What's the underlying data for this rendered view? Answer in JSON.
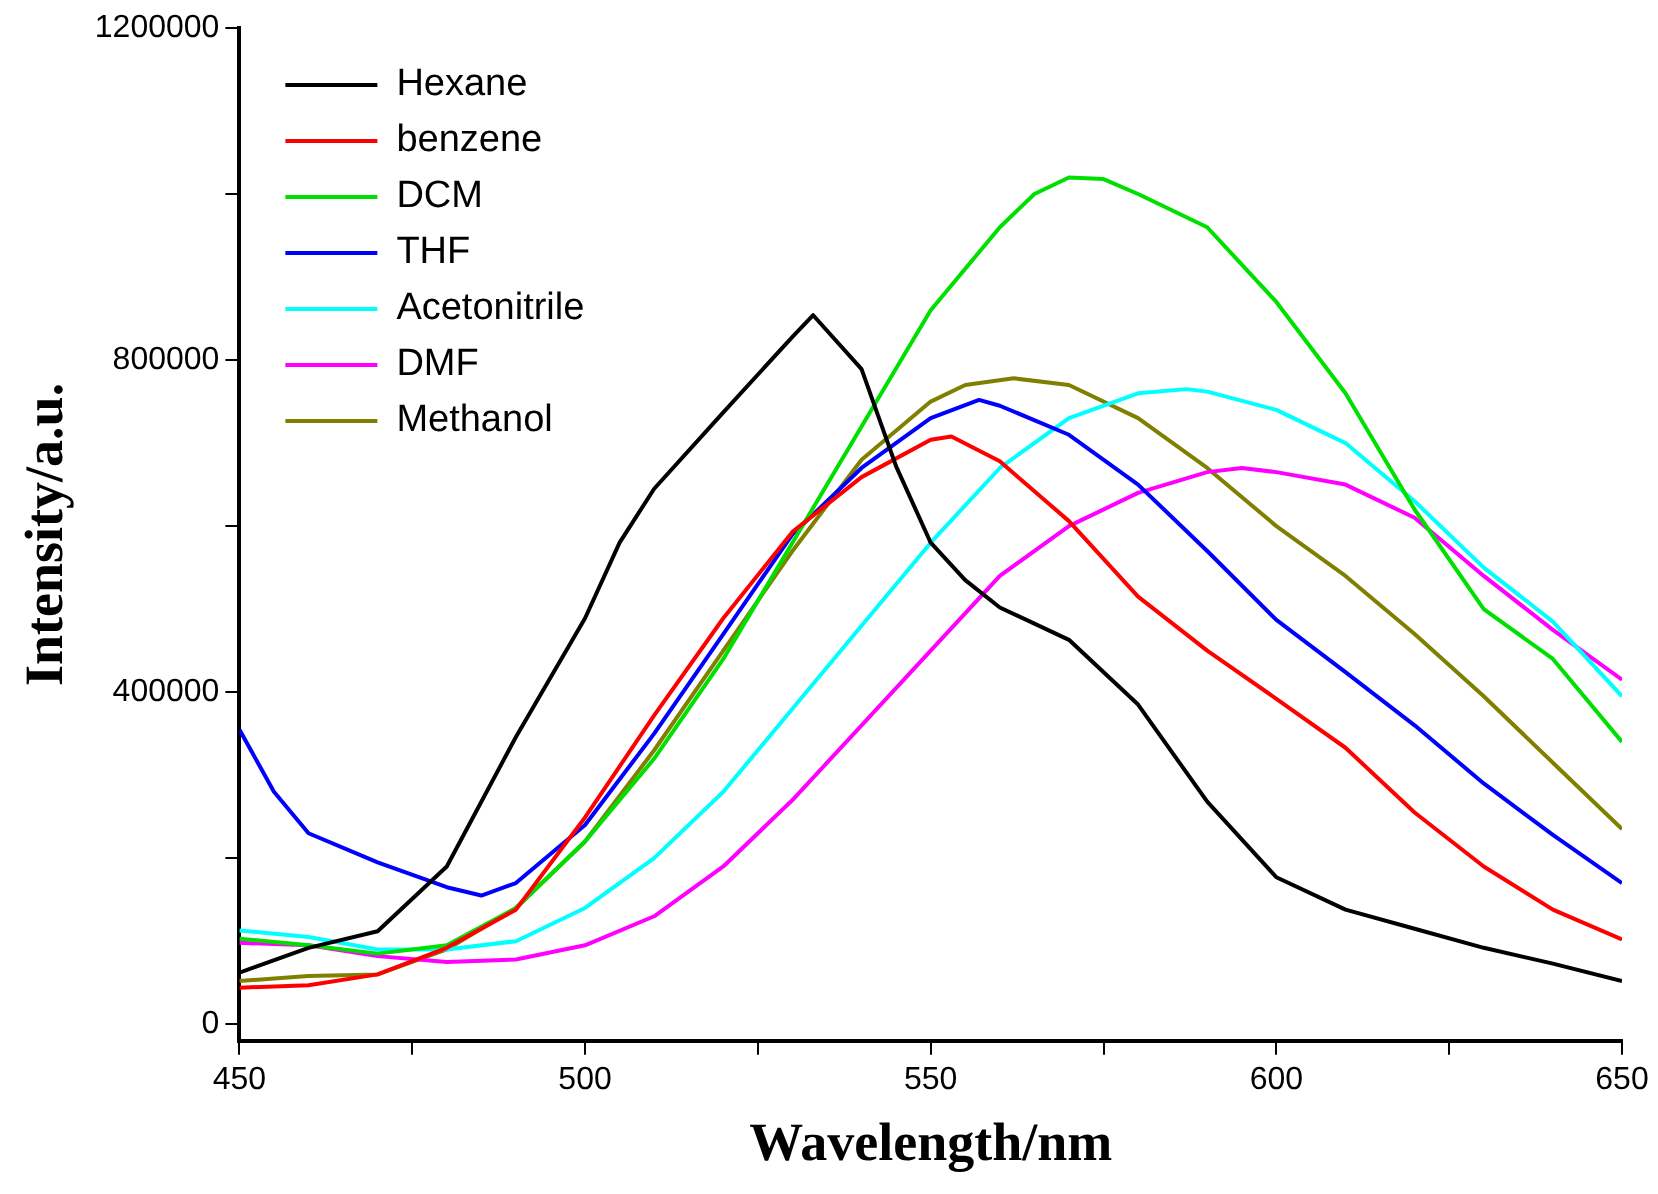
{
  "chart_data": {
    "type": "line",
    "xlabel": "Wavelength/nm",
    "ylabel": "Intensity/a.u.",
    "xlim": [
      450,
      650
    ],
    "xticks": [
      450,
      {
        "value": 475,
        "label": null
      },
      500,
      {
        "value": 525,
        "label": null
      },
      550,
      {
        "value": 575,
        "label": null
      },
      600,
      {
        "value": 625,
        "label": null
      },
      650
    ],
    "ylim": [
      -20000,
      1200000
    ],
    "yticks": [
      0,
      {
        "value": 200000,
        "label": null
      },
      400000,
      {
        "value": 600000,
        "label": null
      },
      800000,
      {
        "value": 1000000,
        "label": null
      },
      1200000
    ],
    "grid": false,
    "legend": "top left",
    "marker": "none",
    "line_style": "solid",
    "series": [
      {
        "name": "Hexane",
        "color": "#000000",
        "x": [
          450,
          460,
          470,
          480,
          490,
          500,
          505,
          510,
          520,
          530,
          533,
          540,
          545,
          550,
          555,
          560,
          570,
          580,
          590,
          600,
          610,
          620,
          630,
          640,
          650
        ],
        "values": [
          62000,
          92000,
          112000,
          190000,
          346000,
          489000,
          580000,
          645000,
          737000,
          828000,
          854000,
          789000,
          672000,
          580000,
          535000,
          502000,
          463000,
          385000,
          268000,
          177000,
          138000,
          115000,
          92000,
          73000,
          52000
        ]
      },
      {
        "name": "benzene",
        "color": "#ff0000",
        "x": [
          450,
          460,
          470,
          480,
          490,
          500,
          510,
          520,
          530,
          540,
          550,
          553,
          560,
          570,
          580,
          590,
          600,
          610,
          620,
          630,
          640,
          650
        ],
        "values": [
          44000,
          47000,
          60000,
          92000,
          138000,
          249000,
          372000,
          489000,
          593000,
          659000,
          704000,
          708000,
          678000,
          606000,
          515000,
          450000,
          392000,
          333000,
          255000,
          190000,
          138000,
          102000
        ]
      },
      {
        "name": "DCM",
        "color": "#00e000",
        "x": [
          450,
          460,
          470,
          480,
          490,
          500,
          510,
          520,
          530,
          540,
          550,
          560,
          565,
          570,
          575,
          580,
          590,
          600,
          610,
          620,
          630,
          640,
          650
        ],
        "values": [
          103000,
          95000,
          85000,
          95000,
          140000,
          220000,
          320000,
          440000,
          580000,
          720000,
          860000,
          960000,
          1000000,
          1020000,
          1018000,
          1000000,
          960000,
          870000,
          760000,
          620000,
          500000,
          440000,
          340000
        ]
      },
      {
        "name": "THF",
        "color": "#0000ff",
        "x": [
          450,
          455,
          460,
          470,
          480,
          485,
          490,
          500,
          510,
          520,
          530,
          540,
          550,
          557,
          560,
          570,
          580,
          590,
          600,
          610,
          620,
          630,
          640,
          650
        ],
        "values": [
          355000,
          280000,
          230000,
          195000,
          165000,
          155000,
          170000,
          240000,
          350000,
          470000,
          590000,
          670000,
          730000,
          752000,
          745000,
          710000,
          650000,
          570000,
          487000,
          424000,
          360000,
          290000,
          228000,
          170000
        ]
      },
      {
        "name": "Acetonitrile",
        "color": "#00ffff",
        "x": [
          450,
          460,
          470,
          480,
          490,
          500,
          510,
          520,
          530,
          540,
          550,
          560,
          570,
          580,
          587,
          590,
          600,
          610,
          620,
          630,
          640,
          650
        ],
        "values": [
          113000,
          105000,
          90000,
          90000,
          100000,
          140000,
          200000,
          280000,
          380000,
          480000,
          580000,
          670000,
          730000,
          760000,
          765000,
          762000,
          740000,
          700000,
          630000,
          550000,
          485000,
          395000
        ]
      },
      {
        "name": "DMF",
        "color": "#ff00ff",
        "x": [
          450,
          460,
          470,
          480,
          490,
          500,
          510,
          520,
          530,
          540,
          550,
          560,
          570,
          580,
          590,
          595,
          600,
          610,
          620,
          630,
          640,
          650
        ],
        "values": [
          98000,
          95000,
          82000,
          75000,
          78000,
          95000,
          130000,
          190000,
          270000,
          360000,
          450000,
          540000,
          600000,
          640000,
          665000,
          670000,
          665000,
          650000,
          610000,
          540000,
          475000,
          415000
        ]
      },
      {
        "name": "Methanol",
        "color": "#808000",
        "x": [
          450,
          460,
          470,
          480,
          490,
          500,
          510,
          520,
          530,
          540,
          550,
          555,
          562,
          570,
          580,
          590,
          600,
          610,
          620,
          630,
          640,
          650
        ],
        "values": [
          52000,
          58000,
          60000,
          90000,
          140000,
          220000,
          330000,
          450000,
          570000,
          680000,
          750000,
          770000,
          778000,
          770000,
          730000,
          670000,
          600000,
          540000,
          470000,
          395000,
          315000,
          235000
        ]
      }
    ]
  }
}
